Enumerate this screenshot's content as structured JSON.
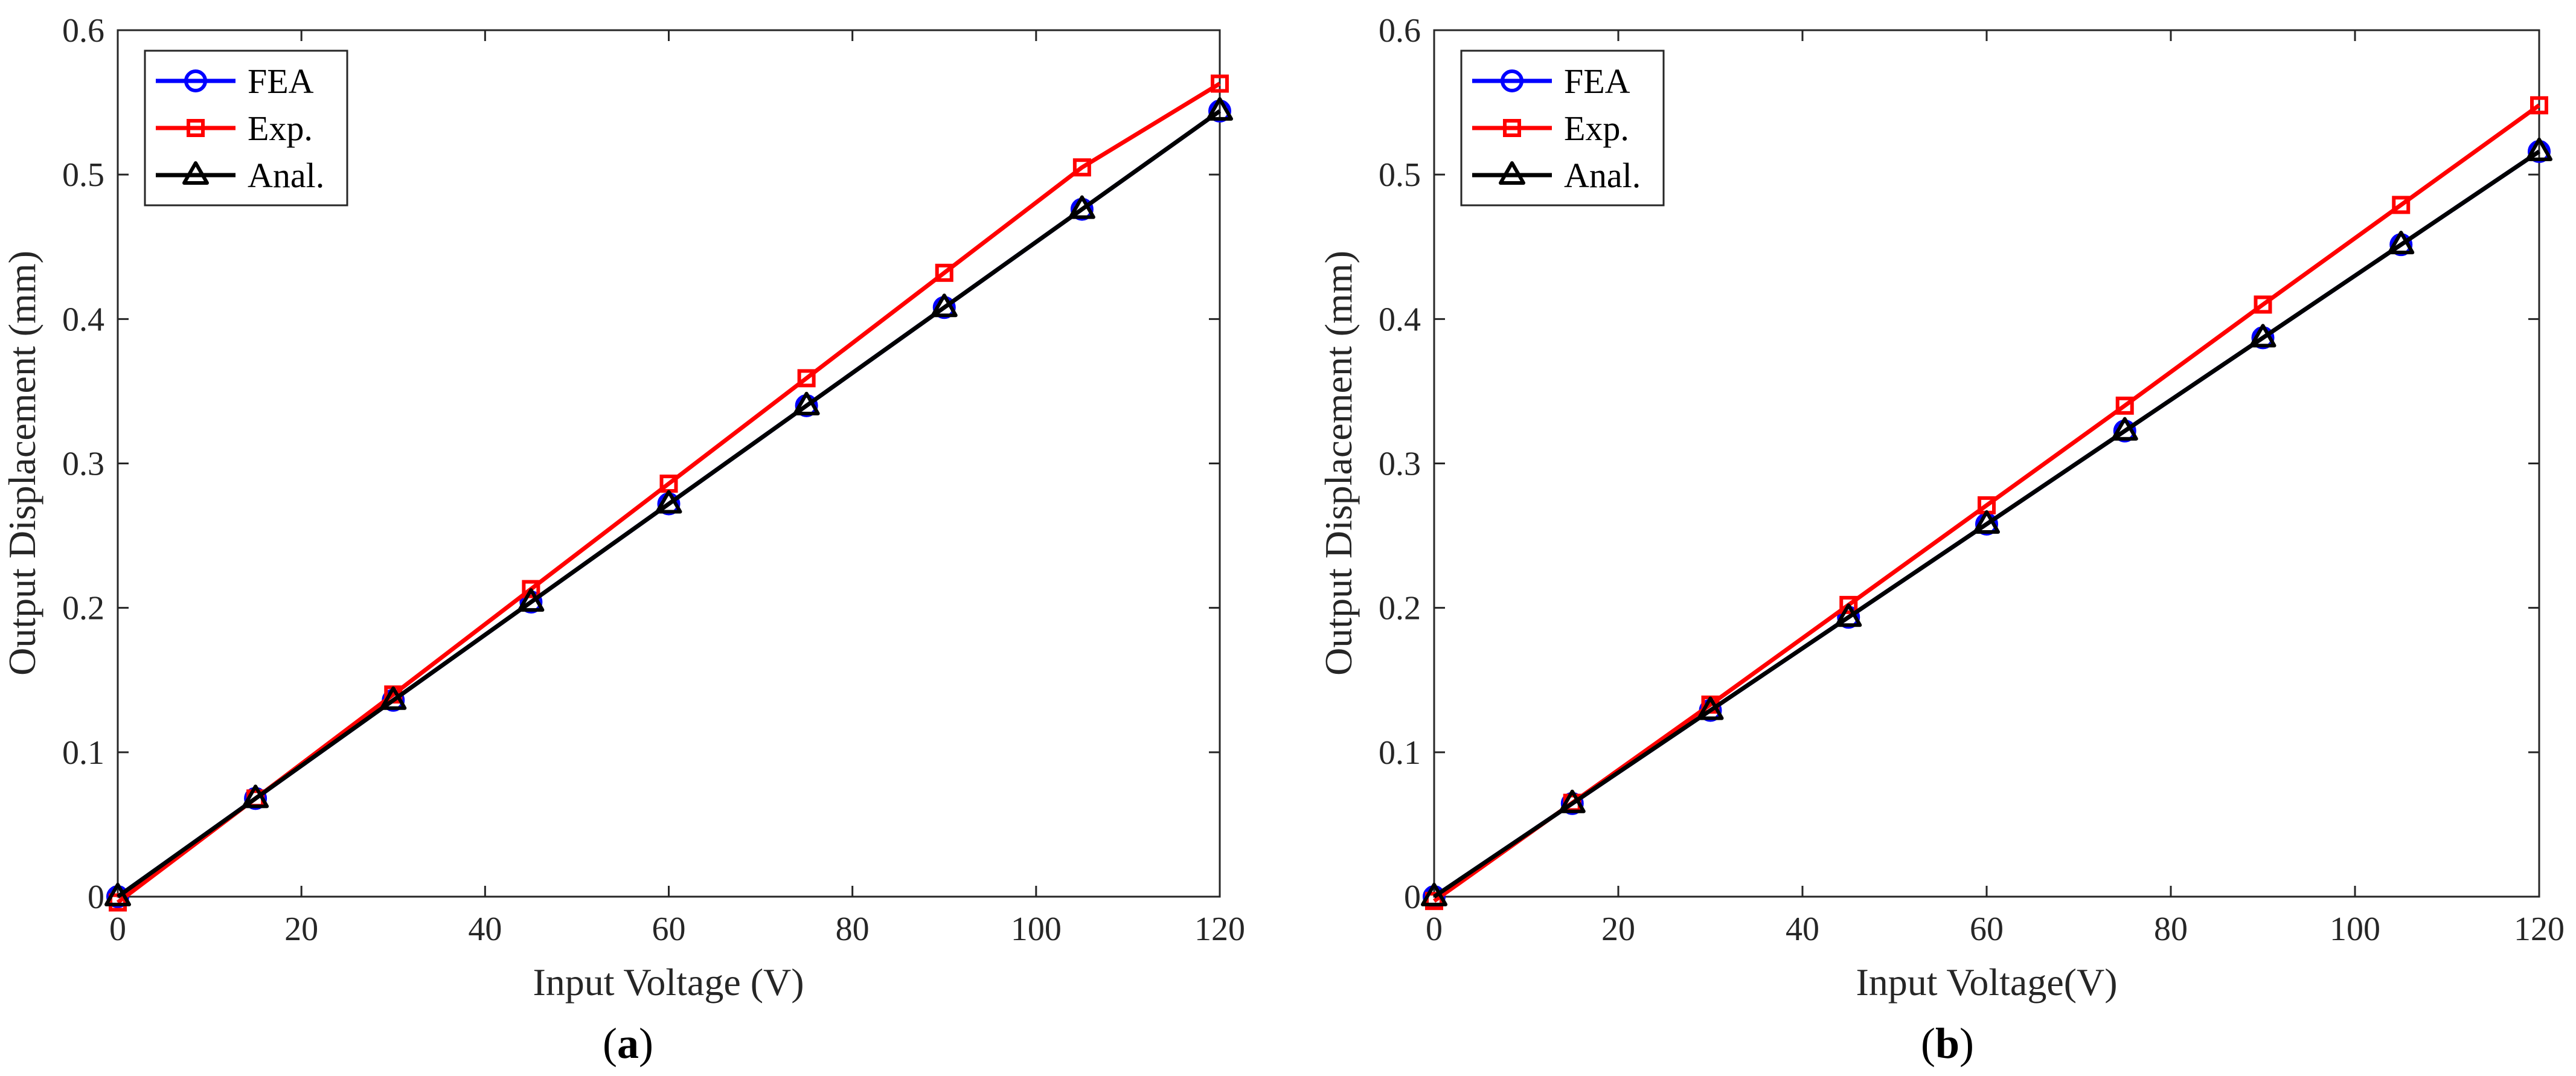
{
  "chart_data": [
    {
      "type": "line",
      "panel_label": "a",
      "xlabel": "Input Voltage (V)",
      "ylabel": "Output Displacement (mm)",
      "xlim": [
        0,
        120
      ],
      "ylim": [
        0,
        0.6
      ],
      "xticks": [
        "0",
        "20",
        "40",
        "60",
        "80",
        "100",
        "120"
      ],
      "yticks": [
        "0",
        "0.1",
        "0.2",
        "0.3",
        "0.4",
        "0.5",
        "0.6"
      ],
      "legend_position": "top-left",
      "x": [
        0,
        15,
        30,
        45,
        60,
        75,
        90,
        105,
        120
      ],
      "series": [
        {
          "name": "FEA",
          "color": "#0000ff",
          "marker": "circle",
          "values": [
            0,
            0.068,
            0.136,
            0.204,
            0.272,
            0.34,
            0.408,
            0.476,
            0.544
          ]
        },
        {
          "name": "Exp.",
          "color": "#ff0000",
          "marker": "square",
          "values": [
            -0.004,
            0.068,
            0.14,
            0.213,
            0.286,
            0.359,
            0.432,
            0.505,
            0.563
          ]
        },
        {
          "name": "Anal.",
          "color": "#000000",
          "marker": "triangle",
          "values": [
            0,
            0.068,
            0.136,
            0.204,
            0.272,
            0.34,
            0.408,
            0.476,
            0.544
          ]
        }
      ]
    },
    {
      "type": "line",
      "panel_label": "b",
      "xlabel": "Input Voltage(V)",
      "ylabel": "Output Displacement (mm)",
      "xlim": [
        0,
        120
      ],
      "ylim": [
        0,
        0.6
      ],
      "xticks": [
        "0",
        "20",
        "40",
        "60",
        "80",
        "100",
        "120"
      ],
      "yticks": [
        "0",
        "0.1",
        "0.2",
        "0.3",
        "0.4",
        "0.5",
        "0.6"
      ],
      "legend_position": "top-left",
      "x": [
        0,
        15,
        30,
        45,
        60,
        75,
        90,
        105,
        120
      ],
      "series": [
        {
          "name": "FEA",
          "color": "#0000ff",
          "marker": "circle",
          "values": [
            0,
            0.0645,
            0.129,
            0.1935,
            0.258,
            0.3225,
            0.387,
            0.4515,
            0.516
          ]
        },
        {
          "name": "Exp.",
          "color": "#ff0000",
          "marker": "square",
          "values": [
            -0.003,
            0.065,
            0.133,
            0.202,
            0.271,
            0.34,
            0.41,
            0.479,
            0.548
          ]
        },
        {
          "name": "Anal.",
          "color": "#000000",
          "marker": "triangle",
          "values": [
            0,
            0.0645,
            0.129,
            0.1935,
            0.258,
            0.3225,
            0.387,
            0.4515,
            0.516
          ]
        }
      ]
    }
  ]
}
